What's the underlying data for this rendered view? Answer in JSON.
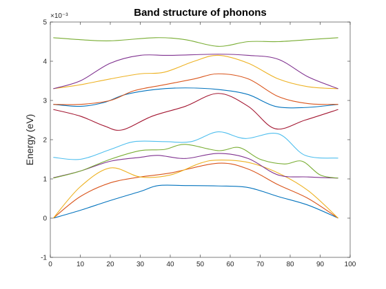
{
  "chart_data": {
    "type": "line",
    "title": "Band structure of phonons",
    "xlabel": "",
    "ylabel": "Energy (eV)",
    "y_exponent_label": "×10⁻³",
    "xlim": [
      0,
      100
    ],
    "ylim": [
      -1,
      5
    ],
    "xticks": [
      0,
      10,
      20,
      30,
      40,
      50,
      60,
      70,
      80,
      90,
      100
    ],
    "yticks": [
      -1,
      0,
      1,
      2,
      3,
      4,
      5
    ],
    "grid": false,
    "legend": "none",
    "series": [
      {
        "color": "#0072BD",
        "points": [
          [
            1,
            0
          ],
          [
            10,
            0.2
          ],
          [
            20,
            0.45
          ],
          [
            30,
            0.68
          ],
          [
            36,
            0.83
          ],
          [
            45,
            0.83
          ],
          [
            56,
            0.82
          ],
          [
            66,
            0.78
          ],
          [
            76,
            0.55
          ],
          [
            86,
            0.33
          ],
          [
            96,
            0
          ]
        ]
      },
      {
        "color": "#D95319",
        "points": [
          [
            1,
            0
          ],
          [
            10,
            0.55
          ],
          [
            20,
            0.9
          ],
          [
            30,
            1.05
          ],
          [
            40,
            1.15
          ],
          [
            56,
            1.4
          ],
          [
            66,
            1.25
          ],
          [
            76,
            0.85
          ],
          [
            86,
            0.5
          ],
          [
            96,
            0
          ]
        ]
      },
      {
        "color": "#EDB120",
        "points": [
          [
            1,
            0
          ],
          [
            10,
            0.8
          ],
          [
            20,
            1.28
          ],
          [
            30,
            1.05
          ],
          [
            40,
            1.1
          ],
          [
            50,
            1.4
          ],
          [
            56,
            1.48
          ],
          [
            66,
            1.42
          ],
          [
            76,
            1.15
          ],
          [
            86,
            0.7
          ],
          [
            96,
            0
          ]
        ]
      },
      {
        "color": "#7E2F8E",
        "points": [
          [
            1,
            1.03
          ],
          [
            10,
            1.2
          ],
          [
            20,
            1.45
          ],
          [
            30,
            1.55
          ],
          [
            36,
            1.6
          ],
          [
            45,
            1.52
          ],
          [
            56,
            1.65
          ],
          [
            66,
            1.52
          ],
          [
            76,
            1.1
          ],
          [
            86,
            1.05
          ],
          [
            96,
            1.02
          ]
        ]
      },
      {
        "color": "#77AC30",
        "points": [
          [
            1,
            1.02
          ],
          [
            10,
            1.2
          ],
          [
            20,
            1.5
          ],
          [
            30,
            1.72
          ],
          [
            38,
            1.75
          ],
          [
            45,
            1.88
          ],
          [
            56,
            1.72
          ],
          [
            63,
            1.8
          ],
          [
            70,
            1.5
          ],
          [
            78,
            1.38
          ],
          [
            84,
            1.45
          ],
          [
            90,
            1.1
          ],
          [
            96,
            1.02
          ]
        ]
      },
      {
        "color": "#4DBEEE",
        "points": [
          [
            1,
            1.55
          ],
          [
            10,
            1.5
          ],
          [
            20,
            1.75
          ],
          [
            28,
            1.95
          ],
          [
            38,
            1.95
          ],
          [
            47,
            1.95
          ],
          [
            56,
            2.2
          ],
          [
            65,
            2.03
          ],
          [
            76,
            2.15
          ],
          [
            85,
            1.6
          ],
          [
            96,
            1.53
          ]
        ]
      },
      {
        "color": "#A2142F",
        "points": [
          [
            1,
            2.77
          ],
          [
            10,
            2.6
          ],
          [
            18,
            2.35
          ],
          [
            24,
            2.25
          ],
          [
            34,
            2.6
          ],
          [
            45,
            2.85
          ],
          [
            56,
            3.18
          ],
          [
            66,
            2.85
          ],
          [
            75,
            2.28
          ],
          [
            85,
            2.5
          ],
          [
            96,
            2.77
          ]
        ]
      },
      {
        "color": "#0072BD",
        "points": [
          [
            1,
            2.9
          ],
          [
            10,
            2.85
          ],
          [
            18,
            2.95
          ],
          [
            25,
            3.15
          ],
          [
            35,
            3.28
          ],
          [
            45,
            3.32
          ],
          [
            56,
            3.28
          ],
          [
            66,
            3.15
          ],
          [
            75,
            2.85
          ],
          [
            85,
            2.82
          ],
          [
            96,
            2.9
          ]
        ]
      },
      {
        "color": "#D95319",
        "points": [
          [
            1,
            2.9
          ],
          [
            10,
            2.9
          ],
          [
            20,
            3.0
          ],
          [
            28,
            3.25
          ],
          [
            38,
            3.4
          ],
          [
            48,
            3.55
          ],
          [
            56,
            3.68
          ],
          [
            66,
            3.55
          ],
          [
            76,
            3.1
          ],
          [
            86,
            2.92
          ],
          [
            96,
            2.9
          ]
        ]
      },
      {
        "color": "#EDB120",
        "points": [
          [
            1,
            3.3
          ],
          [
            10,
            3.4
          ],
          [
            20,
            3.55
          ],
          [
            30,
            3.68
          ],
          [
            38,
            3.72
          ],
          [
            48,
            4.0
          ],
          [
            56,
            4.15
          ],
          [
            66,
            3.95
          ],
          [
            76,
            3.55
          ],
          [
            86,
            3.35
          ],
          [
            96,
            3.3
          ]
        ]
      },
      {
        "color": "#7E2F8E",
        "points": [
          [
            1,
            3.3
          ],
          [
            10,
            3.5
          ],
          [
            20,
            3.95
          ],
          [
            30,
            4.15
          ],
          [
            40,
            4.15
          ],
          [
            56,
            4.18
          ],
          [
            66,
            4.15
          ],
          [
            76,
            4.05
          ],
          [
            86,
            3.6
          ],
          [
            96,
            3.3
          ]
        ]
      },
      {
        "color": "#77AC30",
        "points": [
          [
            1,
            4.6
          ],
          [
            10,
            4.55
          ],
          [
            20,
            4.52
          ],
          [
            35,
            4.6
          ],
          [
            45,
            4.55
          ],
          [
            56,
            4.38
          ],
          [
            66,
            4.5
          ],
          [
            76,
            4.5
          ],
          [
            86,
            4.55
          ],
          [
            96,
            4.6
          ]
        ]
      }
    ]
  }
}
